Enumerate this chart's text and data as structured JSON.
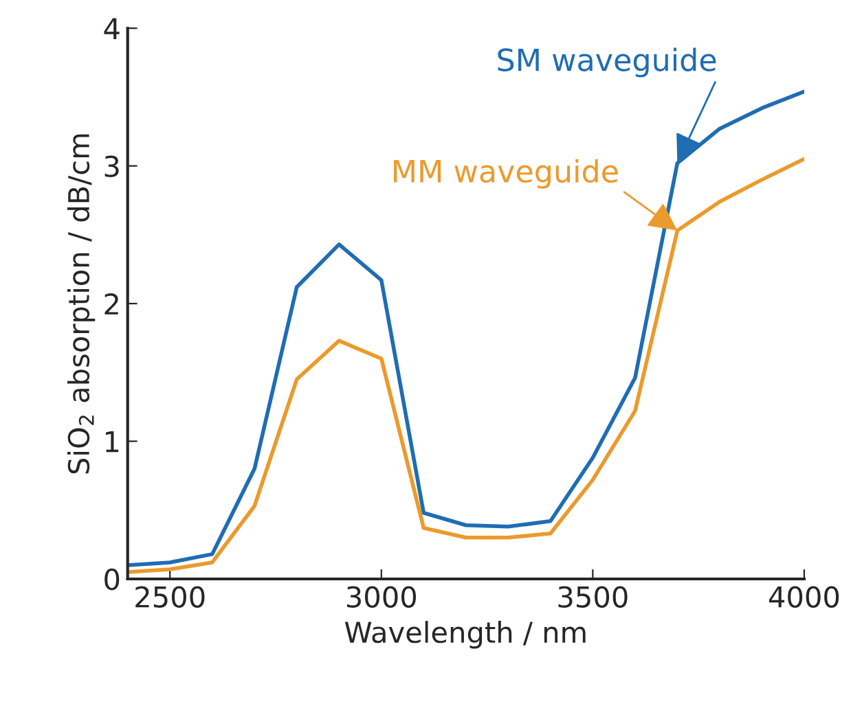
{
  "chart_data": {
    "type": "line",
    "xlabel": "Wavelength / nm",
    "ylabel": "SiO$_{2}$ absorption / dB/cm",
    "x": [
      2400,
      2500,
      2600,
      2700,
      2800,
      2900,
      3000,
      3100,
      3200,
      3300,
      3400,
      3500,
      3600,
      3700,
      3800,
      3900,
      4000
    ],
    "series": [
      {
        "name": "SM waveguide",
        "color": "#1f6db3",
        "values": [
          0.1,
          0.12,
          0.18,
          0.8,
          2.12,
          2.43,
          2.17,
          0.48,
          0.39,
          0.38,
          0.42,
          0.88,
          1.46,
          3.02,
          3.27,
          3.42,
          3.54
        ]
      },
      {
        "name": "MM waveguide",
        "color": "#eb9a2c",
        "values": [
          0.05,
          0.07,
          0.12,
          0.53,
          1.45,
          1.73,
          1.6,
          0.37,
          0.3,
          0.3,
          0.33,
          0.72,
          1.22,
          2.53,
          2.74,
          2.9,
          3.05
        ]
      }
    ],
    "xlim": [
      2400,
      4000
    ],
    "xticks": [
      2500,
      3000,
      3500,
      4000
    ],
    "ylim": [
      0,
      4
    ],
    "yticks": [
      0,
      1,
      2,
      3,
      4
    ],
    "grid": false,
    "legend": false,
    "marker": "none",
    "line_style": "solid"
  }
}
